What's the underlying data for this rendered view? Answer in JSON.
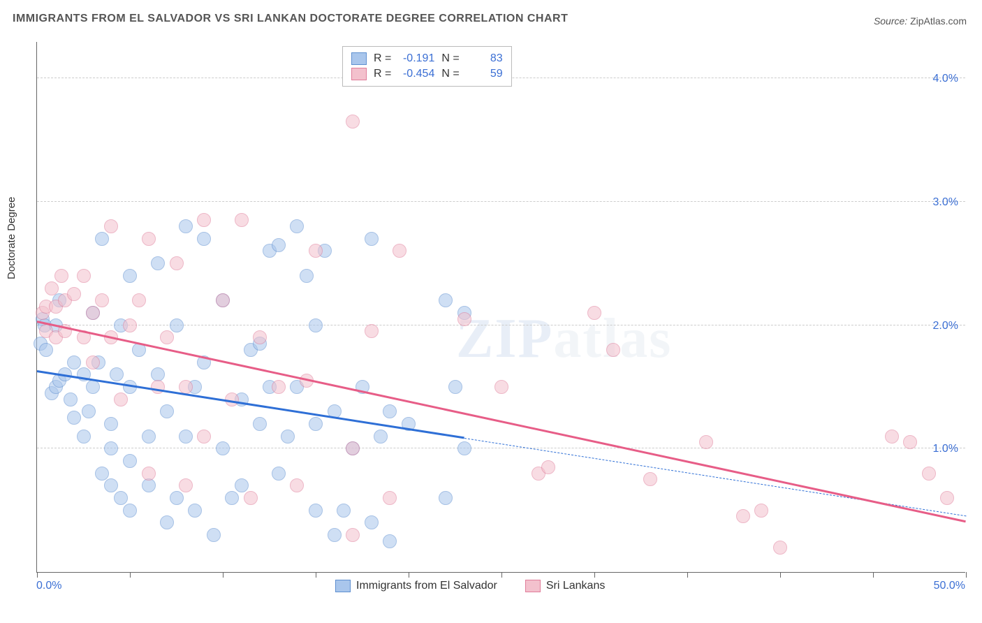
{
  "title": "IMMIGRANTS FROM EL SALVADOR VS SRI LANKAN DOCTORATE DEGREE CORRELATION CHART",
  "source_label": "Source:",
  "source_value": "ZipAtlas.com",
  "y_axis_label": "Doctorate Degree",
  "watermark_bold": "ZIP",
  "watermark_light": "atlas",
  "chart": {
    "type": "scatter",
    "xlim": [
      0,
      50
    ],
    "ylim": [
      0,
      4.3
    ],
    "x_tick_positions": [
      0,
      5,
      10,
      15,
      20,
      25,
      30,
      35,
      40,
      45,
      50
    ],
    "x_tick_labels_shown": {
      "0": "0.0%",
      "50": "50.0%"
    },
    "y_grid_values": [
      1.0,
      2.0,
      3.0,
      4.0
    ],
    "y_tick_labels": [
      "1.0%",
      "2.0%",
      "3.0%",
      "4.0%"
    ],
    "background_color": "#ffffff",
    "grid_color": "#cccccc",
    "axis_color": "#666666",
    "tick_label_color": "#3b6fd4",
    "axis_label_color": "#333333",
    "point_radius": 10,
    "point_opacity": 0.55,
    "series": [
      {
        "name": "Immigrants from El Salvador",
        "fill": "#a9c6ec",
        "stroke": "#5e8fd0",
        "R_label": "R =",
        "R": "-0.191",
        "N_label": "N =",
        "N": "83",
        "trend": {
          "x1": 0,
          "y1": 1.62,
          "x2": 23,
          "y2": 1.08,
          "color": "#2e6fd6",
          "width": 3,
          "dash_extend_to_x": 50,
          "dash_y": 0.45
        },
        "points": [
          [
            0.2,
            1.85
          ],
          [
            0.3,
            2.05
          ],
          [
            0.4,
            2.0
          ],
          [
            0.5,
            1.8
          ],
          [
            0.8,
            1.45
          ],
          [
            1.0,
            1.5
          ],
          [
            1.2,
            1.55
          ],
          [
            1.0,
            2.0
          ],
          [
            1.2,
            2.2
          ],
          [
            1.5,
            1.6
          ],
          [
            1.8,
            1.4
          ],
          [
            2.0,
            1.25
          ],
          [
            2.0,
            1.7
          ],
          [
            2.5,
            1.6
          ],
          [
            2.5,
            1.1
          ],
          [
            2.8,
            1.3
          ],
          [
            3.0,
            1.5
          ],
          [
            3.3,
            1.7
          ],
          [
            3.0,
            2.1
          ],
          [
            3.5,
            2.7
          ],
          [
            3.5,
            0.8
          ],
          [
            4.0,
            0.7
          ],
          [
            4.0,
            1.0
          ],
          [
            4.0,
            1.2
          ],
          [
            4.3,
            1.6
          ],
          [
            4.5,
            2.0
          ],
          [
            4.5,
            0.6
          ],
          [
            5.0,
            0.5
          ],
          [
            5.0,
            0.9
          ],
          [
            5.0,
            1.5
          ],
          [
            5.5,
            1.8
          ],
          [
            5.0,
            2.4
          ],
          [
            6.0,
            0.7
          ],
          [
            6.0,
            1.1
          ],
          [
            6.5,
            1.6
          ],
          [
            6.5,
            2.5
          ],
          [
            7.0,
            1.3
          ],
          [
            7.0,
            0.4
          ],
          [
            7.5,
            0.6
          ],
          [
            7.5,
            2.0
          ],
          [
            8.0,
            2.8
          ],
          [
            8.0,
            1.1
          ],
          [
            8.5,
            1.5
          ],
          [
            8.5,
            0.5
          ],
          [
            9.0,
            2.7
          ],
          [
            9.0,
            1.7
          ],
          [
            9.5,
            0.3
          ],
          [
            10.0,
            1.0
          ],
          [
            10.0,
            2.2
          ],
          [
            10.5,
            0.6
          ],
          [
            11.0,
            1.4
          ],
          [
            11.5,
            1.8
          ],
          [
            11.0,
            0.7
          ],
          [
            12.0,
            1.2
          ],
          [
            12.0,
            1.85
          ],
          [
            12.5,
            1.5
          ],
          [
            12.5,
            2.6
          ],
          [
            13.0,
            0.8
          ],
          [
            13.0,
            2.65
          ],
          [
            13.5,
            1.1
          ],
          [
            14.0,
            1.5
          ],
          [
            14.0,
            2.8
          ],
          [
            14.5,
            2.4
          ],
          [
            15.0,
            2.0
          ],
          [
            15.0,
            1.2
          ],
          [
            15.0,
            0.5
          ],
          [
            15.5,
            2.6
          ],
          [
            16.0,
            0.3
          ],
          [
            16.0,
            1.3
          ],
          [
            16.5,
            0.5
          ],
          [
            17.0,
            1.0
          ],
          [
            17.5,
            1.5
          ],
          [
            18.0,
            2.7
          ],
          [
            18.0,
            0.4
          ],
          [
            18.5,
            1.1
          ],
          [
            19.0,
            1.3
          ],
          [
            19.0,
            0.25
          ],
          [
            20.0,
            1.2
          ],
          [
            22.0,
            2.2
          ],
          [
            22.0,
            0.6
          ],
          [
            22.5,
            1.5
          ],
          [
            23.0,
            1.0
          ],
          [
            23.0,
            2.1
          ]
        ]
      },
      {
        "name": "Sri Lankans",
        "fill": "#f3c1cd",
        "stroke": "#e07d9a",
        "R_label": "R =",
        "R": "-0.454",
        "N_label": "N =",
        "N": "59",
        "trend": {
          "x1": 0,
          "y1": 2.02,
          "x2": 50,
          "y2": 0.4,
          "color": "#e75d87",
          "width": 3
        },
        "points": [
          [
            0.3,
            2.1
          ],
          [
            0.5,
            2.15
          ],
          [
            0.5,
            1.95
          ],
          [
            0.8,
            2.3
          ],
          [
            1.0,
            2.15
          ],
          [
            1.0,
            1.9
          ],
          [
            1.3,
            2.4
          ],
          [
            1.5,
            2.2
          ],
          [
            1.5,
            1.95
          ],
          [
            2.0,
            2.25
          ],
          [
            2.5,
            2.4
          ],
          [
            2.5,
            1.9
          ],
          [
            3.0,
            2.1
          ],
          [
            3.0,
            1.7
          ],
          [
            3.5,
            2.2
          ],
          [
            4.0,
            2.8
          ],
          [
            4.0,
            1.9
          ],
          [
            4.5,
            1.4
          ],
          [
            5.0,
            2.0
          ],
          [
            5.5,
            2.2
          ],
          [
            6.0,
            2.7
          ],
          [
            6.0,
            0.8
          ],
          [
            6.5,
            1.5
          ],
          [
            7.0,
            1.9
          ],
          [
            7.5,
            2.5
          ],
          [
            8.0,
            0.7
          ],
          [
            8.0,
            1.5
          ],
          [
            9.0,
            2.85
          ],
          [
            9.0,
            1.1
          ],
          [
            10.0,
            2.2
          ],
          [
            10.5,
            1.4
          ],
          [
            11.0,
            2.85
          ],
          [
            11.5,
            0.6
          ],
          [
            12.0,
            1.9
          ],
          [
            13.0,
            1.5
          ],
          [
            14.0,
            0.7
          ],
          [
            14.5,
            1.55
          ],
          [
            15.0,
            2.6
          ],
          [
            17.0,
            0.3
          ],
          [
            17.0,
            1.0
          ],
          [
            17.0,
            3.65
          ],
          [
            18.0,
            1.95
          ],
          [
            19.0,
            0.6
          ],
          [
            19.5,
            2.6
          ],
          [
            23.0,
            2.05
          ],
          [
            25.0,
            1.5
          ],
          [
            27.0,
            0.8
          ],
          [
            27.5,
            0.85
          ],
          [
            30.0,
            2.1
          ],
          [
            31.0,
            1.8
          ],
          [
            33.0,
            0.75
          ],
          [
            36.0,
            1.05
          ],
          [
            38.0,
            0.45
          ],
          [
            39.0,
            0.5
          ],
          [
            40.0,
            0.2
          ],
          [
            46.0,
            1.1
          ],
          [
            47.0,
            1.05
          ],
          [
            48.0,
            0.8
          ],
          [
            49.0,
            0.6
          ]
        ]
      }
    ],
    "legend": {
      "series1_label": "Immigrants from El Salvador",
      "series2_label": "Sri Lankans"
    }
  }
}
